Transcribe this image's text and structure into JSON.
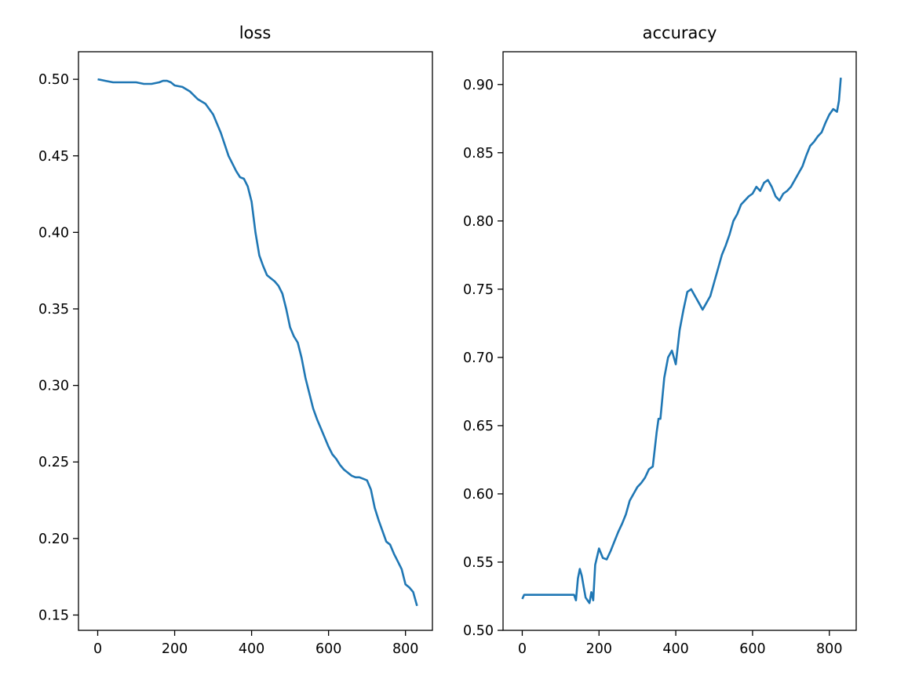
{
  "chart_data": [
    {
      "type": "line",
      "title": "loss",
      "xlabel": "",
      "ylabel": "",
      "xlim": [
        -50,
        870
      ],
      "ylim": [
        0.14,
        0.518
      ],
      "x_ticks": [
        0,
        200,
        400,
        600,
        800
      ],
      "y_ticks": [
        0.15,
        0.2,
        0.25,
        0.3,
        0.35,
        0.4,
        0.45,
        0.5
      ],
      "x_tick_labels": [
        "0",
        "200",
        "400",
        "600",
        "800"
      ],
      "y_tick_labels": [
        "0.15",
        "0.20",
        "0.25",
        "0.30",
        "0.35",
        "0.40",
        "0.45",
        "0.50"
      ],
      "grid": false,
      "series": [
        {
          "color": "#1f77b4",
          "x": [
            0,
            20,
            40,
            60,
            80,
            100,
            120,
            140,
            160,
            170,
            180,
            190,
            200,
            220,
            240,
            260,
            280,
            300,
            320,
            340,
            360,
            370,
            380,
            390,
            400,
            410,
            420,
            430,
            440,
            450,
            460,
            470,
            480,
            490,
            500,
            510,
            520,
            530,
            540,
            550,
            560,
            570,
            580,
            590,
            600,
            610,
            620,
            630,
            640,
            650,
            660,
            670,
            680,
            690,
            700,
            710,
            720,
            730,
            740,
            750,
            760,
            770,
            780,
            790,
            800,
            810,
            820,
            830
          ],
          "y": [
            0.5,
            0.499,
            0.498,
            0.498,
            0.498,
            0.498,
            0.497,
            0.497,
            0.498,
            0.499,
            0.499,
            0.498,
            0.496,
            0.495,
            0.492,
            0.487,
            0.484,
            0.477,
            0.465,
            0.45,
            0.44,
            0.436,
            0.435,
            0.43,
            0.42,
            0.4,
            0.385,
            0.378,
            0.372,
            0.37,
            0.368,
            0.365,
            0.36,
            0.35,
            0.338,
            0.332,
            0.328,
            0.318,
            0.305,
            0.295,
            0.285,
            0.278,
            0.272,
            0.266,
            0.26,
            0.255,
            0.252,
            0.248,
            0.245,
            0.243,
            0.241,
            0.24,
            0.24,
            0.239,
            0.238,
            0.232,
            0.22,
            0.212,
            0.205,
            0.198,
            0.196,
            0.19,
            0.185,
            0.18,
            0.17,
            0.168,
            0.165,
            0.156
          ]
        }
      ]
    },
    {
      "type": "line",
      "title": "accuracy",
      "xlabel": "",
      "ylabel": "",
      "xlim": [
        -50,
        870
      ],
      "ylim": [
        0.5,
        0.924
      ],
      "x_ticks": [
        0,
        200,
        400,
        600,
        800
      ],
      "y_ticks": [
        0.5,
        0.55,
        0.6,
        0.65,
        0.7,
        0.75,
        0.8,
        0.85,
        0.9
      ],
      "x_tick_labels": [
        "0",
        "200",
        "400",
        "600",
        "800"
      ],
      "y_tick_labels": [
        "0.50",
        "0.55",
        "0.60",
        "0.65",
        "0.70",
        "0.75",
        "0.80",
        "0.85",
        "0.90"
      ],
      "grid": false,
      "series": [
        {
          "color": "#1f77b4",
          "x": [
            0,
            5,
            10,
            20,
            40,
            60,
            80,
            100,
            120,
            135,
            140,
            145,
            150,
            155,
            160,
            165,
            170,
            175,
            180,
            185,
            190,
            200,
            210,
            220,
            230,
            240,
            250,
            260,
            270,
            280,
            290,
            300,
            310,
            320,
            330,
            340,
            350,
            355,
            360,
            370,
            380,
            390,
            400,
            410,
            420,
            430,
            440,
            450,
            460,
            470,
            480,
            490,
            500,
            510,
            520,
            530,
            540,
            550,
            560,
            570,
            580,
            590,
            600,
            610,
            620,
            630,
            640,
            650,
            660,
            670,
            680,
            690,
            700,
            710,
            720,
            730,
            740,
            750,
            760,
            770,
            780,
            790,
            800,
            810,
            820,
            825,
            830
          ],
          "y": [
            0.523,
            0.526,
            0.526,
            0.526,
            0.526,
            0.526,
            0.526,
            0.526,
            0.526,
            0.526,
            0.522,
            0.538,
            0.545,
            0.54,
            0.532,
            0.524,
            0.522,
            0.52,
            0.528,
            0.522,
            0.548,
            0.56,
            0.553,
            0.552,
            0.558,
            0.565,
            0.572,
            0.578,
            0.585,
            0.595,
            0.6,
            0.605,
            0.608,
            0.612,
            0.618,
            0.62,
            0.645,
            0.655,
            0.655,
            0.685,
            0.7,
            0.705,
            0.695,
            0.72,
            0.735,
            0.748,
            0.75,
            0.745,
            0.74,
            0.735,
            0.74,
            0.745,
            0.755,
            0.765,
            0.775,
            0.782,
            0.79,
            0.8,
            0.805,
            0.812,
            0.815,
            0.818,
            0.82,
            0.825,
            0.822,
            0.828,
            0.83,
            0.825,
            0.818,
            0.815,
            0.82,
            0.822,
            0.825,
            0.83,
            0.835,
            0.84,
            0.848,
            0.855,
            0.858,
            0.862,
            0.865,
            0.872,
            0.878,
            0.882,
            0.88,
            0.888,
            0.905
          ]
        }
      ]
    }
  ]
}
